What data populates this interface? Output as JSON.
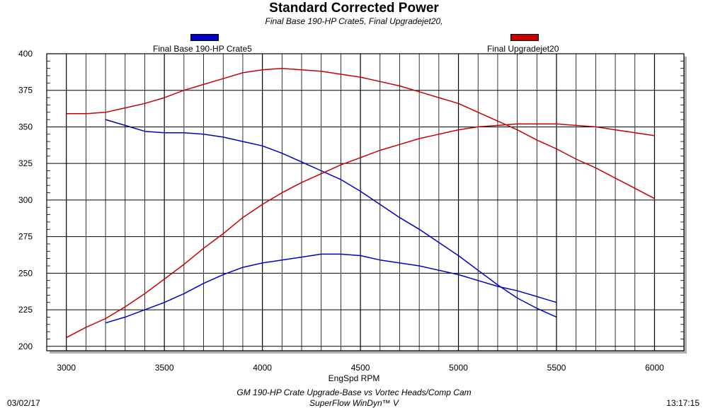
{
  "chart_data": {
    "type": "line",
    "title": "Standard Corrected Power",
    "subtitle": "Final Base 190-HP Crate5, Final Upgradejet20,",
    "xlabel": "EngSpd RPM",
    "ylabel": "",
    "xlim": [
      2900,
      6150
    ],
    "ylim": [
      197,
      400
    ],
    "xticks": [
      3000,
      3500,
      4000,
      4500,
      5000,
      5500,
      6000
    ],
    "yticks": [
      200,
      225,
      250,
      275,
      300,
      325,
      350,
      375,
      400
    ],
    "grid": true,
    "legend_position": "top",
    "series": [
      {
        "name": "Final Base 190-HP Crate5",
        "color": "#0000c8",
        "curves": [
          {
            "x": [
              3200,
              3300,
              3400,
              3500,
              3600,
              3700,
              3800,
              3900,
              4000,
              4100,
              4200,
              4300,
              4400,
              4500,
              4600,
              4700,
              4800,
              4900,
              5000,
              5100,
              5200,
              5300,
              5400,
              5500
            ],
            "y": [
              355,
              351,
              347,
              346,
              346,
              345,
              343,
              340,
              337,
              332,
              326,
              320,
              314,
              306,
              297,
              288,
              280,
              271,
              262,
              252,
              242,
              233,
              226,
              220
            ]
          },
          {
            "x": [
              3200,
              3300,
              3400,
              3500,
              3600,
              3700,
              3800,
              3900,
              4000,
              4100,
              4200,
              4300,
              4400,
              4500,
              4600,
              4700,
              4800,
              4900,
              5000,
              5100,
              5200,
              5300,
              5400,
              5500
            ],
            "y": [
              216,
              220,
              225,
              230,
              236,
              243,
              249,
              254,
              257,
              259,
              261,
              263,
              263,
              262,
              259,
              257,
              255,
              252,
              249,
              245,
              241,
              238,
              234,
              230
            ]
          }
        ]
      },
      {
        "name": "Final Upgradejet20",
        "color": "#c80000",
        "curves": [
          {
            "x": [
              3000,
              3100,
              3200,
              3300,
              3400,
              3500,
              3600,
              3700,
              3800,
              3900,
              4000,
              4100,
              4200,
              4300,
              4400,
              4500,
              4600,
              4700,
              4800,
              4900,
              5000,
              5100,
              5200,
              5300,
              5400,
              5500,
              5600,
              5700,
              5800,
              5900,
              6000
            ],
            "y": [
              359,
              359,
              360,
              363,
              366,
              370,
              375,
              379,
              383,
              387,
              389,
              390,
              389,
              388,
              386,
              384,
              381,
              378,
              374,
              370,
              366,
              360,
              354,
              348,
              341,
              335,
              328,
              322,
              315,
              308,
              301
            ]
          },
          {
            "x": [
              3000,
              3100,
              3200,
              3300,
              3400,
              3500,
              3600,
              3700,
              3800,
              3900,
              4000,
              4100,
              4200,
              4300,
              4400,
              4500,
              4600,
              4700,
              4800,
              4900,
              5000,
              5100,
              5200,
              5300,
              5400,
              5500,
              5600,
              5700,
              5800,
              5900,
              6000
            ],
            "y": [
              206,
              213,
              219,
              227,
              236,
              246,
              256,
              267,
              277,
              288,
              297,
              305,
              312,
              318,
              324,
              329,
              334,
              338,
              342,
              345,
              348,
              350,
              351,
              352,
              352,
              352,
              351,
              350,
              348,
              346,
              344
            ]
          }
        ]
      }
    ]
  },
  "footer": {
    "date": "03/02/17",
    "time": "13:17:15",
    "line1": "GM 190-HP Crate Upgrade-Base vs Vortec Heads/Comp Cam",
    "line2": "SuperFlow WinDyn™ V"
  }
}
